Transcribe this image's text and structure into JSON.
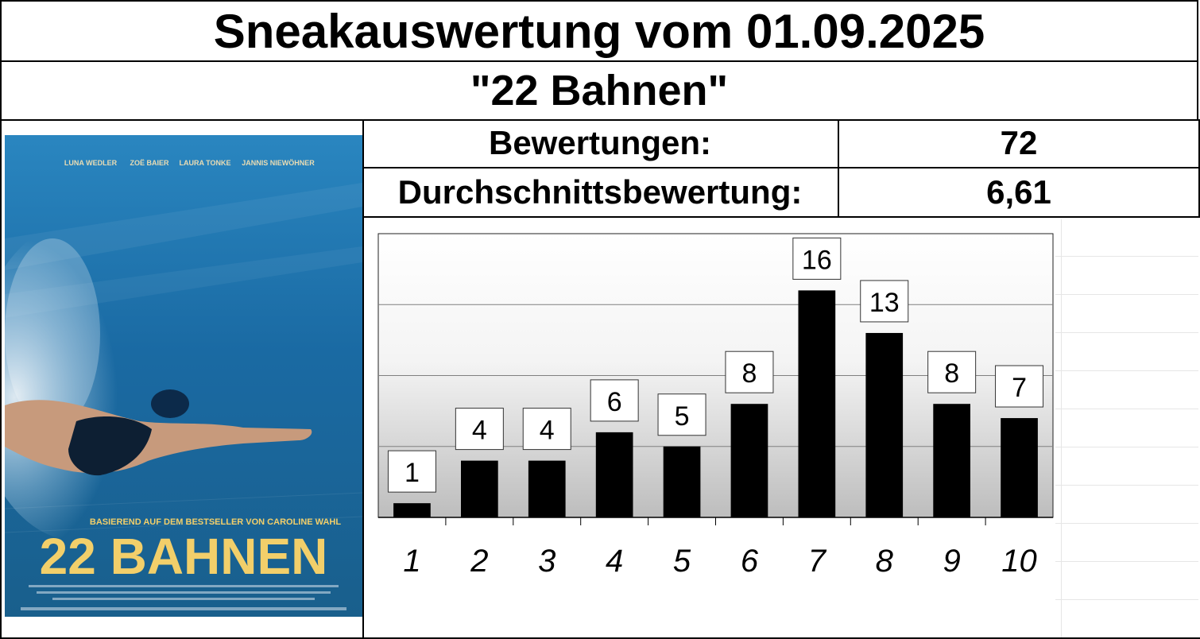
{
  "header": {
    "title": "Sneakauswertung vom 01.09.2025",
    "subtitle": "\"22 Bahnen\""
  },
  "stats": {
    "ratings_label": "Bewertungen:",
    "ratings_value": "72",
    "average_label": "Durchschnittsbewertung:",
    "average_value": "6,61"
  },
  "poster": {
    "actors": [
      "LUNA WEDLER",
      "ZOË BAIER",
      "LAURA TONKE",
      "JANNIS NIEWÖHNER"
    ],
    "tagline": "BASIEREND AUF DEM BESTSELLER VON CAROLINE WAHL",
    "title": "22 BAHNEN",
    "colors": {
      "water_top": "#1d6fa8",
      "water_bottom": "#0f4f7a",
      "title": "#f2cf6a"
    }
  },
  "chart_data": {
    "type": "bar",
    "categories": [
      "1",
      "2",
      "3",
      "4",
      "5",
      "6",
      "7",
      "8",
      "9",
      "10"
    ],
    "values": [
      1,
      4,
      4,
      6,
      5,
      8,
      16,
      13,
      8,
      7
    ],
    "ylim": [
      0,
      20
    ],
    "grid": true,
    "bar_color": "#000000",
    "title": "",
    "xlabel": "",
    "ylabel": ""
  }
}
